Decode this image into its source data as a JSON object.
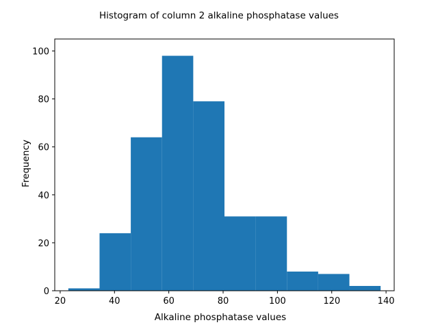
{
  "chart_data": {
    "type": "bar",
    "title": "Histogram of column 2 alkaline phosphatase values",
    "xlabel": "Alkaline phosphatase values",
    "ylabel": "Frequency",
    "bin_edges": [
      23.0,
      34.5,
      46.0,
      57.5,
      69.0,
      80.5,
      92.0,
      103.5,
      115.0,
      126.5,
      138.0
    ],
    "values": [
      1,
      24,
      64,
      98,
      79,
      31,
      31,
      8,
      7,
      2
    ],
    "xlim": [
      18.0,
      143.0
    ],
    "ylim": [
      0,
      105
    ],
    "xticks": [
      20,
      40,
      60,
      80,
      100,
      120,
      140
    ],
    "yticks": [
      0,
      20,
      40,
      60,
      80,
      100
    ],
    "grid": false,
    "bar_color": "#1f77b4"
  }
}
